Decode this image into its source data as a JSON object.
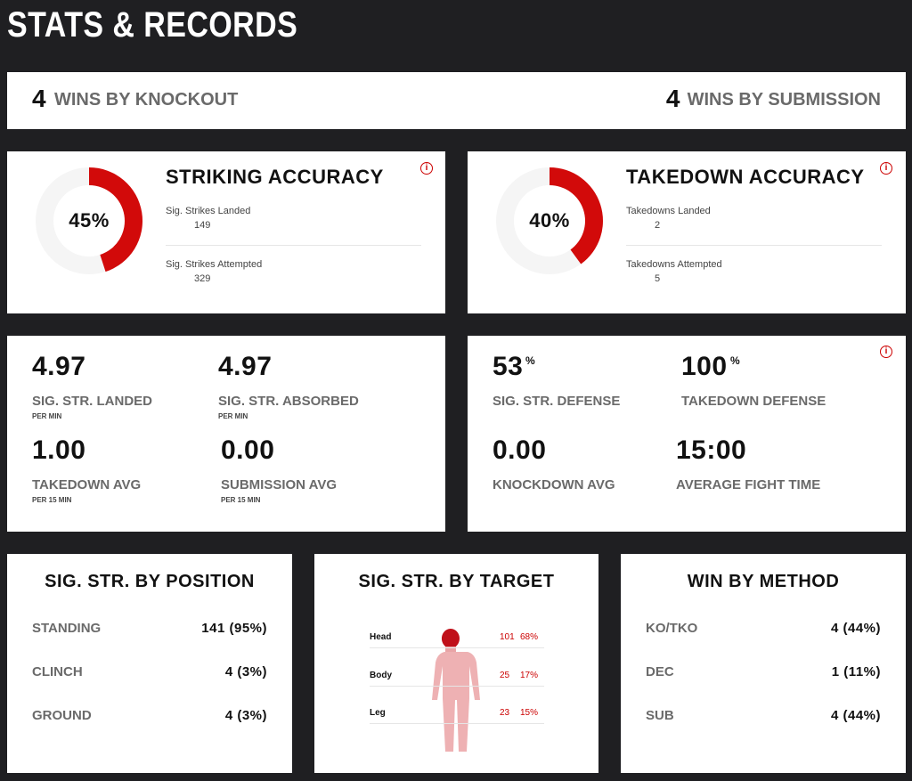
{
  "header": {
    "title": "STATS & RECORDS"
  },
  "wins": [
    {
      "count": "4",
      "label": "WINS BY KNOCKOUT"
    },
    {
      "count": "4",
      "label": "WINS BY SUBMISSION"
    }
  ],
  "accuracy": [
    {
      "title": "STRIKING ACCURACY",
      "percent": 45,
      "percent_label": "45%",
      "rows": [
        {
          "label": "Sig. Strikes Landed",
          "value": "149"
        },
        {
          "label": "Sig. Strikes Attempted",
          "value": "329"
        }
      ]
    },
    {
      "title": "TAKEDOWN ACCURACY",
      "percent": 40,
      "percent_label": "40%",
      "rows": [
        {
          "label": "Takedowns Landed",
          "value": "2"
        },
        {
          "label": "Takedowns Attempted",
          "value": "5"
        }
      ]
    }
  ],
  "averages": [
    {
      "value": "4.97",
      "label": "SIG. STR. LANDED",
      "note": "PER MIN"
    },
    {
      "value": "4.97",
      "label": "SIG. STR. ABSORBED",
      "note": "PER MIN"
    },
    {
      "value": "1.00",
      "label": "TAKEDOWN AVG",
      "note": "PER 15 MIN"
    },
    {
      "value": "0.00",
      "label": "SUBMISSION AVG",
      "note": "PER 15 MIN"
    }
  ],
  "defense": [
    {
      "value": "53",
      "unit": "%",
      "label": "SIG. STR. DEFENSE"
    },
    {
      "value": "100",
      "unit": "%",
      "label": "TAKEDOWN DEFENSE"
    },
    {
      "value": "0.00",
      "label": "KNOCKDOWN AVG"
    },
    {
      "value": "15:00",
      "label": "AVERAGE FIGHT TIME"
    }
  ],
  "by_position": {
    "title": "SIG. STR. BY POSITION",
    "rows": [
      {
        "label": "STANDING",
        "value": "141 (95%)"
      },
      {
        "label": "CLINCH",
        "value": "4 (3%)"
      },
      {
        "label": "GROUND",
        "value": "4 (3%)"
      }
    ]
  },
  "by_target": {
    "title": "SIG. STR. BY TARGET",
    "rows": [
      {
        "label": "Head",
        "count": "101",
        "share": "68%"
      },
      {
        "label": "Body",
        "count": "25",
        "share": "17%"
      },
      {
        "label": "Leg",
        "count": "23",
        "share": "15%"
      }
    ]
  },
  "by_method": {
    "title": "WIN BY METHOD",
    "rows": [
      {
        "label": "KO/TKO",
        "value": "4 (44%)"
      },
      {
        "label": "DEC",
        "value": "1 (11%)"
      },
      {
        "label": "SUB",
        "value": "4 (44%)"
      }
    ]
  }
}
